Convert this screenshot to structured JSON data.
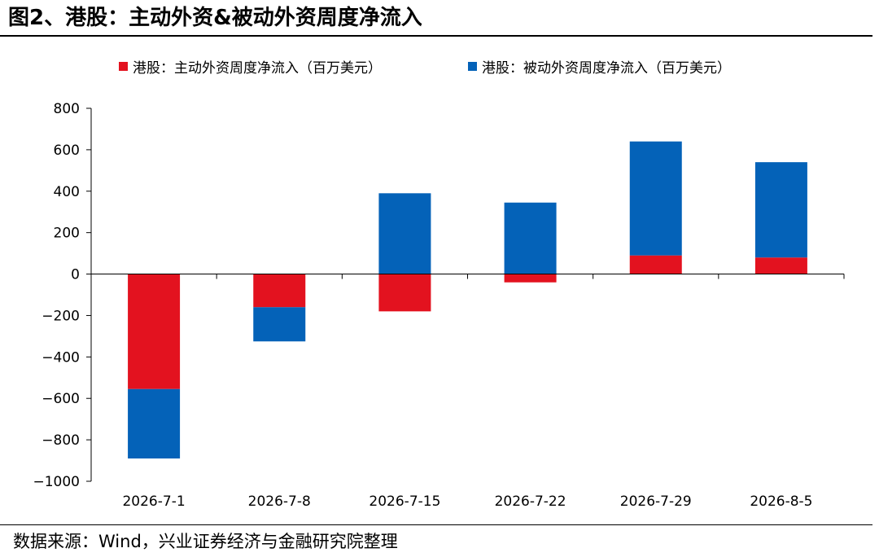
{
  "figure": {
    "title": "图2、港股：主动外资&被动外资周度净流入",
    "source": "数据来源：Wind，兴业证券经济与金融研究院整理"
  },
  "colors": {
    "active": "#e3121f",
    "passive": "#0462b8",
    "axis": "#000000"
  },
  "chart_data": {
    "type": "bar",
    "stacked": true,
    "title": "",
    "xlabel": "",
    "ylabel": "",
    "categories": [
      "2026-7-1",
      "2026-7-8",
      "2026-7-15",
      "2026-7-22",
      "2026-7-29",
      "2026-8-5"
    ],
    "series": [
      {
        "name": "港股：主动外资周度净流入（百万美元）",
        "values": [
          -555,
          -160,
          -180,
          -40,
          90,
          80
        ]
      },
      {
        "name": "港股：被动外资周度净流入（百万美元）",
        "values": [
          -335,
          -165,
          390,
          345,
          550,
          460
        ]
      }
    ],
    "ylim": [
      -1000,
      800
    ],
    "yticks": [
      800,
      600,
      400,
      200,
      0,
      -200,
      -400,
      -600,
      -800,
      -1000
    ],
    "ytick_labels": [
      "800",
      "600",
      "400",
      "200",
      "0",
      "−200",
      "−400",
      "−600",
      "−800",
      "−1000"
    ],
    "grid": false,
    "legend": "top"
  }
}
